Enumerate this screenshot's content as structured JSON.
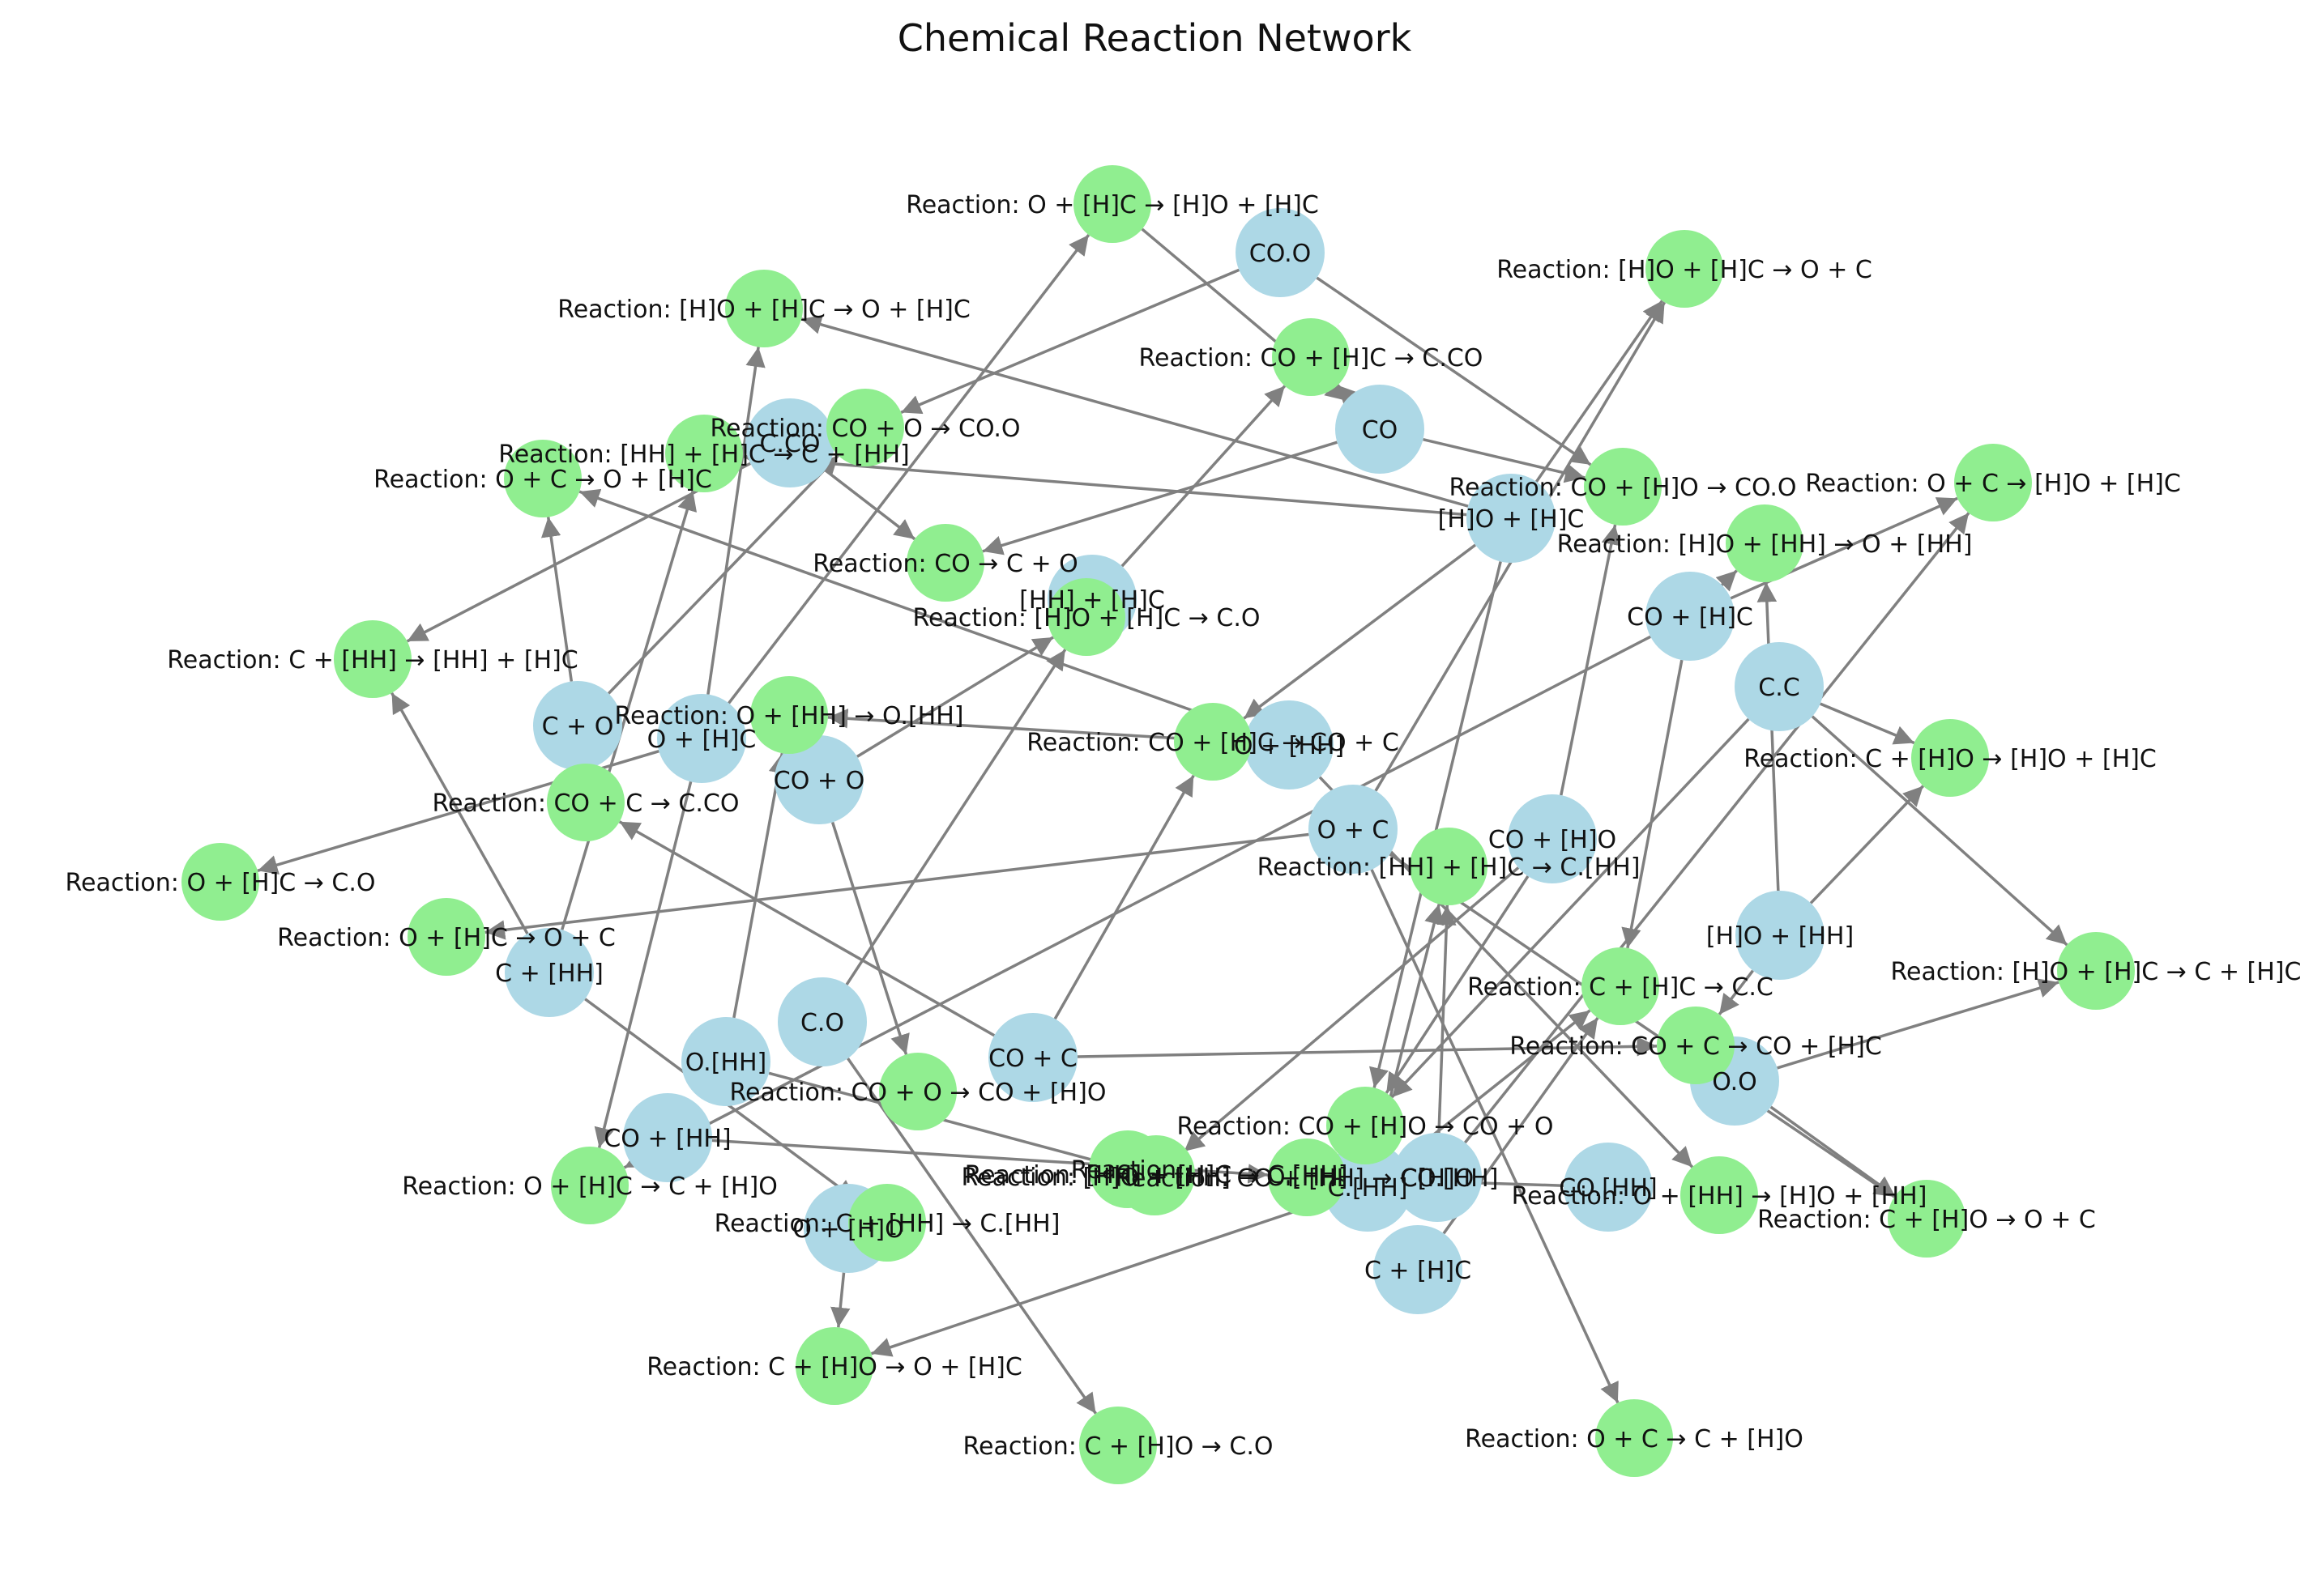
{
  "title": "Chemical Reaction Network",
  "colors": {
    "species": "#add8e6",
    "reaction": "#90ee90",
    "edge": "#808080",
    "label": "#111111"
  },
  "species": [
    "CO.O",
    "C.CO",
    "CO",
    "[H]O + [H]C",
    "[HH] + [H]C",
    "CO + [H]C",
    "C.C",
    "C + O",
    "O + [H]C",
    "O + [HH]",
    "CO + O",
    "O + C",
    "CO + [H]O",
    "[H]O + [HH]",
    "C + [HH]",
    "C.O",
    "O.[HH]",
    "CO + C",
    "O.O",
    "CO + [HH]",
    "C.[HH]",
    "C + [H]C",
    "O + [H]O",
    "CO.[HH]",
    "C[H]O"
  ],
  "reactions": [
    "Reaction: O + [H]C → [H]O + [H]C",
    "Reaction: [H]O + [H]C → O + C",
    "Reaction: [H]O + [H]C → O + [H]C",
    "Reaction: CO + [H]C → C.CO",
    "Reaction: CO + O → CO.O",
    "Reaction: [HH] + [H]C → C + [HH]",
    "Reaction: O + C → O + [H]C",
    "Reaction: CO + [H]O → CO.O",
    "Reaction: O + C → [H]O + [H]C",
    "Reaction: [H]O + [HH] → O + [HH]",
    "Reaction: CO → C + O",
    "Reaction: [H]O + [H]C → C.O",
    "Reaction: C + [HH] → [HH] + [H]C",
    "Reaction: O + [HH] → O.[HH]",
    "Reaction: CO + [H]C → CO + C",
    "Reaction: C + [H]O → [H]O + [H]C",
    "Reaction: CO + C → C.CO",
    "Reaction: [HH] + [H]C → C.[HH]",
    "Reaction: O + [H]C → C.O",
    "Reaction: O + [H]C → O + C",
    "Reaction: [H]O + [H]C → C + [H]C",
    "Reaction: C + [H]C → C.C",
    "Reaction: CO + C → CO + [H]C",
    "Reaction: CO + O → CO + [H]O",
    "Reaction: CO + [H]O → CO + O",
    "Reaction: [H]O + [HH] → O.[HH]",
    "Reaction: CO + [HH] → CO.[HH]",
    "Reaction: C + [HH] → C.[HH]",
    "Reaction: O + [H]C → C + [H]O",
    "Reaction: O + [HH] → [H]O + [HH]",
    "Reaction: C + [H]O → O + C",
    "Reaction: C + [H]O → O + [H]C",
    "Reaction: C + [H]O → C.O",
    "Reaction: O + C → C + [H]O",
    "Reaction:",
    "Reaction: [HH] + [H]C → C.[HH]"
  ]
}
